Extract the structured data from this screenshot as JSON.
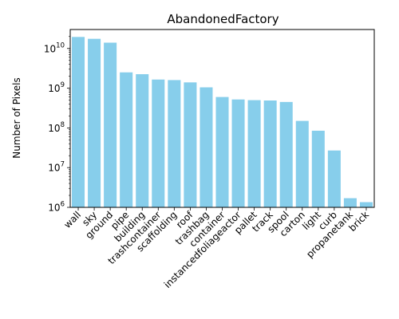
{
  "chart_data": {
    "type": "bar",
    "title": "AbandonedFactory",
    "xlabel": "",
    "ylabel": "Number of Pixels",
    "yscale": "log",
    "ylim": [
      1000000,
      30000000000
    ],
    "grid": false,
    "bar_color": "#87CEEB",
    "categories": [
      "wall",
      "sky",
      "ground",
      "pipe",
      "building",
      "trashcontainer",
      "scaffolding",
      "roof",
      "trashbag",
      "container",
      "instancedfoliageactor",
      "pallet",
      "track",
      "spool",
      "carton",
      "light",
      "curb",
      "propanetank",
      "brick"
    ],
    "values": [
      19500000000,
      17500000000,
      14000000000,
      2500000000,
      2250000000,
      1650000000,
      1600000000,
      1400000000,
      1050000000,
      600000000,
      520000000,
      500000000,
      490000000,
      450000000,
      150000000,
      85000000,
      27000000,
      1700000,
      1350000
    ],
    "ytick_labels": [
      {
        "exp": 6,
        "label": "10",
        "sup": "6"
      },
      {
        "exp": 7,
        "label": "10",
        "sup": "7"
      },
      {
        "exp": 8,
        "label": "10",
        "sup": "8"
      },
      {
        "exp": 9,
        "label": "10",
        "sup": "9"
      },
      {
        "exp": 10,
        "label": "10",
        "sup": "10"
      }
    ]
  }
}
